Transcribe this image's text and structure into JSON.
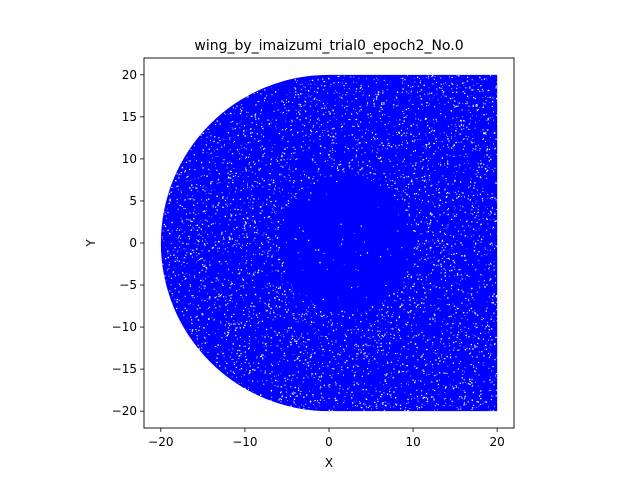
{
  "chart_data": {
    "type": "mesh",
    "title": "wing_by_imaizumi_trial0_epoch2_No.0",
    "xlabel": "X",
    "ylabel": "Y",
    "xlim": [
      -22,
      22
    ],
    "ylim": [
      -22,
      22
    ],
    "xticks": [
      -20,
      -10,
      0,
      10,
      20
    ],
    "yticks": [
      -20,
      -15,
      -10,
      -5,
      0,
      5,
      10,
      15,
      20
    ],
    "grid": false,
    "mesh_color": "#0000ff",
    "domain_outline": {
      "left_semicircle": {
        "center": [
          0,
          0
        ],
        "radius": 20
      },
      "rectangle": {
        "x": [
          0,
          20
        ],
        "y": [
          -20,
          20
        ]
      }
    },
    "dense_region": {
      "center": [
        2,
        0
      ],
      "radius": 8
    }
  }
}
